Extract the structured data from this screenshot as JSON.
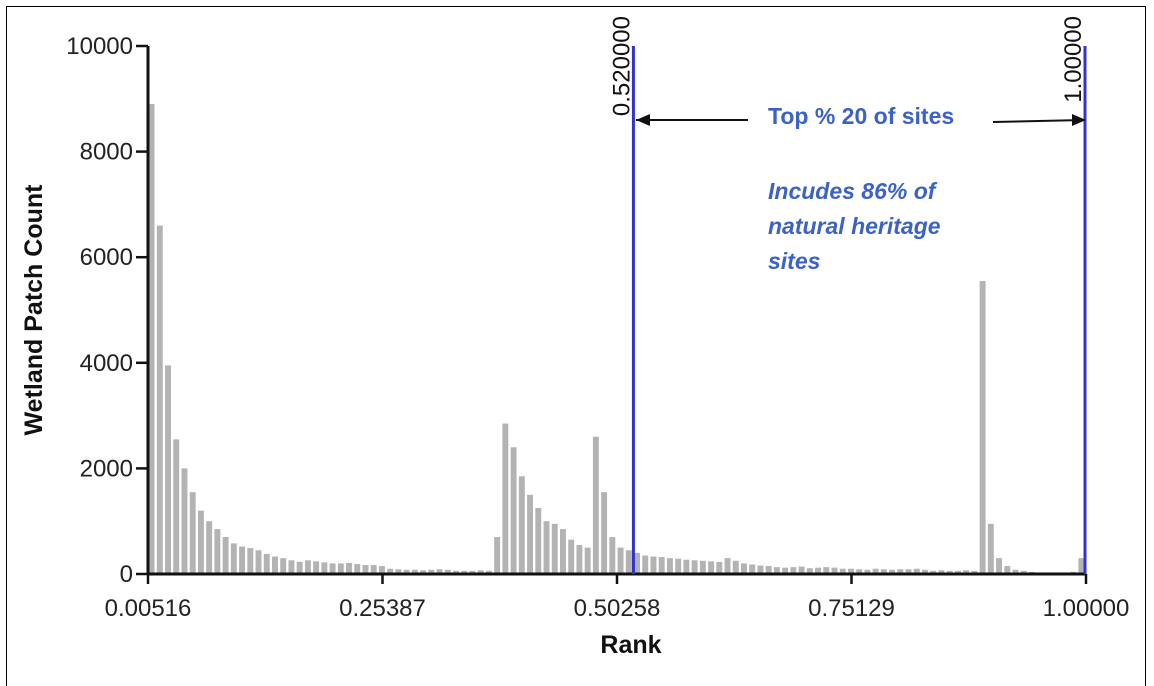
{
  "chart_data": {
    "type": "bar",
    "title": "",
    "xlabel": "Rank",
    "ylabel": "Wetland Patch Count",
    "ylim": [
      0,
      10000
    ],
    "xlim": [
      0.00516,
      1.0
    ],
    "yticks": [
      0,
      2000,
      4000,
      6000,
      8000,
      10000
    ],
    "xticks": [
      "0.00516",
      "0.25387",
      "0.50258",
      "0.75129",
      "1.00000"
    ],
    "grid": false,
    "bar_color": "#b3b3b3",
    "threshold_color": "#3333cc",
    "annotation_color": "#3b62c4",
    "thresholds": [
      {
        "value": 0.52,
        "label": "0.520000"
      },
      {
        "value": 1.0,
        "label": "1.00000"
      }
    ],
    "annotations": {
      "range_text": "Top % 20 of sites",
      "note_lines": [
        "Incudes 86% of",
        "natural heritage",
        "sites"
      ]
    },
    "values": [
      8900,
      6600,
      3950,
      2550,
      2000,
      1550,
      1200,
      1000,
      850,
      700,
      580,
      520,
      490,
      450,
      380,
      330,
      300,
      260,
      230,
      260,
      240,
      220,
      200,
      200,
      210,
      190,
      170,
      170,
      150,
      100,
      90,
      80,
      80,
      70,
      80,
      90,
      80,
      60,
      60,
      60,
      70,
      60,
      700,
      2850,
      2400,
      1850,
      1500,
      1250,
      1000,
      950,
      850,
      650,
      550,
      500,
      2600,
      1550,
      700,
      500,
      450,
      400,
      350,
      330,
      320,
      300,
      290,
      270,
      260,
      250,
      240,
      230,
      300,
      250,
      200,
      180,
      160,
      150,
      130,
      120,
      130,
      140,
      110,
      120,
      130,
      120,
      100,
      100,
      90,
      80,
      100,
      90,
      80,
      90,
      90,
      100,
      80,
      60,
      70,
      60,
      60,
      70,
      60,
      5550,
      950,
      300,
      150,
      80,
      60,
      40,
      30,
      30,
      30,
      30,
      40,
      300
    ]
  }
}
